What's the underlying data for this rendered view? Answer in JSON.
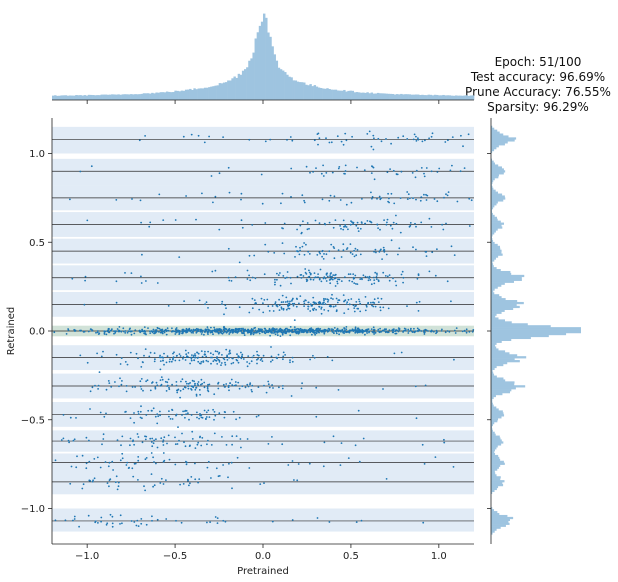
{
  "chart_data": {
    "type": "scatter",
    "title_lines": [
      "Epoch: 51/100",
      "Test accuracy: 96.69%",
      "Prune Accuracy: 76.55%",
      "Sparsity: 96.29%"
    ],
    "xlabel": "Pretrained",
    "ylabel": "Retrained",
    "xlim": [
      -1.2,
      1.2
    ],
    "ylim": [
      -1.2,
      1.2
    ],
    "x_ticks": [
      -1.0,
      -0.5,
      0.0,
      0.5,
      1.0
    ],
    "y_ticks": [
      -1.0,
      -0.5,
      0.0,
      0.5,
      1.0
    ],
    "x_tick_labels": [
      "−1.0",
      "−0.5",
      "0.0",
      "0.5",
      "1.0"
    ],
    "y_tick_labels": [
      "−1.0",
      "−0.5",
      "0.0",
      "0.5",
      "1.0"
    ],
    "grid": false,
    "legend": "none",
    "colors": {
      "points": "#1f77b4",
      "band_fill": "#dce8f4",
      "cluster_line": "#2b2b2b",
      "hist": "#9ec4e0"
    },
    "cluster_levels": [
      1.08,
      0.9,
      0.75,
      0.6,
      0.45,
      0.3,
      0.15,
      0.0,
      -0.15,
      -0.31,
      -0.47,
      -0.62,
      -0.74,
      -0.85,
      -1.07
    ],
    "cluster_bands": [
      {
        "level": 1.08,
        "low": 1.0,
        "high": 1.15
      },
      {
        "level": 0.9,
        "low": 0.82,
        "high": 0.97
      },
      {
        "level": 0.75,
        "low": 0.68,
        "high": 0.82
      },
      {
        "level": 0.6,
        "low": 0.53,
        "high": 0.67
      },
      {
        "level": 0.45,
        "low": 0.38,
        "high": 0.52
      },
      {
        "level": 0.3,
        "low": 0.23,
        "high": 0.37
      },
      {
        "level": 0.15,
        "low": 0.08,
        "high": 0.22
      },
      {
        "level": 0.0,
        "low": -0.03,
        "high": 0.03
      },
      {
        "level": -0.15,
        "low": -0.22,
        "high": -0.08
      },
      {
        "level": -0.31,
        "low": -0.38,
        "high": -0.24
      },
      {
        "level": -0.47,
        "low": -0.54,
        "high": -0.4
      },
      {
        "level": -0.62,
        "low": -0.68,
        "high": -0.56
      },
      {
        "level": -0.74,
        "low": -0.8,
        "high": -0.69
      },
      {
        "level": -0.85,
        "low": -0.92,
        "high": -0.8
      },
      {
        "level": -1.07,
        "low": -1.13,
        "high": -1.0
      }
    ],
    "x_marginal": {
      "type": "histogram",
      "center": 0.0,
      "shape": "sharp peak at 0 with broad wings",
      "range": [
        -1.2,
        1.2
      ]
    },
    "y_marginal": {
      "type": "histogram",
      "center": 0.0,
      "shape": "dominant peak at 0 with secondary peaks at cluster levels",
      "range": [
        -1.2,
        1.2
      ]
    }
  }
}
